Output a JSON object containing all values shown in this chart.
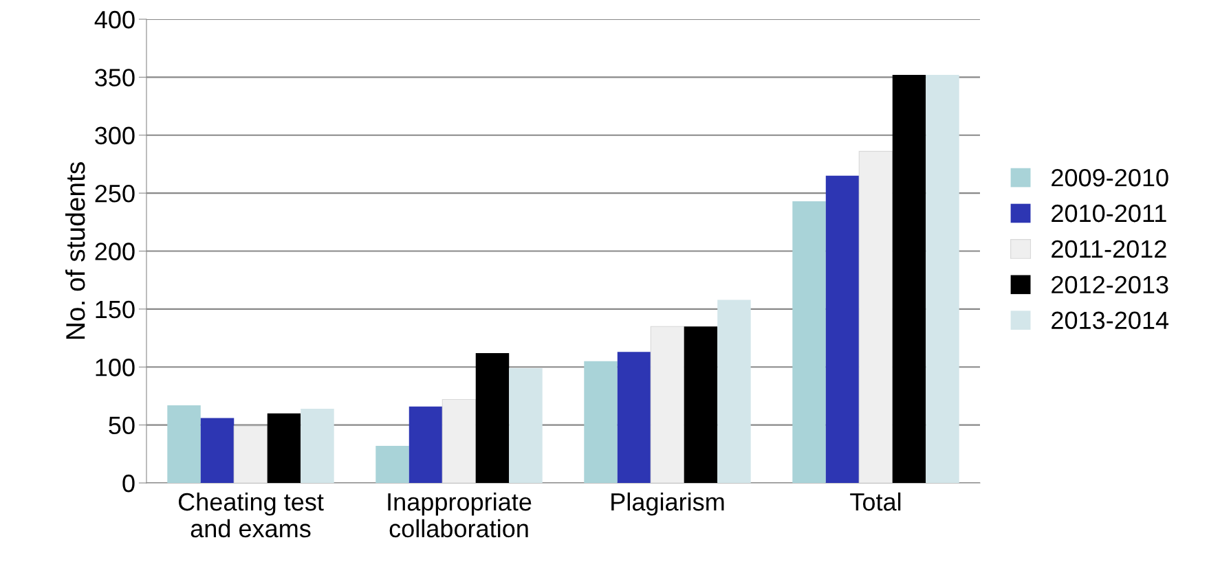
{
  "chart_data": {
    "type": "bar",
    "ylabel": "No. of students",
    "categories": [
      "Cheating test\nand exams",
      "Inappropriate\ncollaboration",
      "Plagiarism",
      "Total"
    ],
    "series": [
      {
        "name": "2009-2010",
        "color": "#a9d3d8",
        "values": [
          67,
          32,
          105,
          243
        ]
      },
      {
        "name": "2010-2011",
        "color": "#2d36b3",
        "values": [
          56,
          66,
          113,
          265
        ]
      },
      {
        "name": "2011-2012",
        "color": "#efefef",
        "values": [
          49,
          72,
          135,
          286
        ]
      },
      {
        "name": "2012-2013",
        "color": "#000000",
        "values": [
          60,
          112,
          135,
          352
        ]
      },
      {
        "name": "2013-2014",
        "color": "#d3e6ea",
        "values": [
          64,
          99,
          158,
          352
        ]
      }
    ],
    "ylim": [
      0,
      400
    ],
    "yticks": [
      0,
      50,
      100,
      150,
      200,
      250,
      300,
      350,
      400
    ],
    "grid": "y",
    "legend": "right"
  }
}
